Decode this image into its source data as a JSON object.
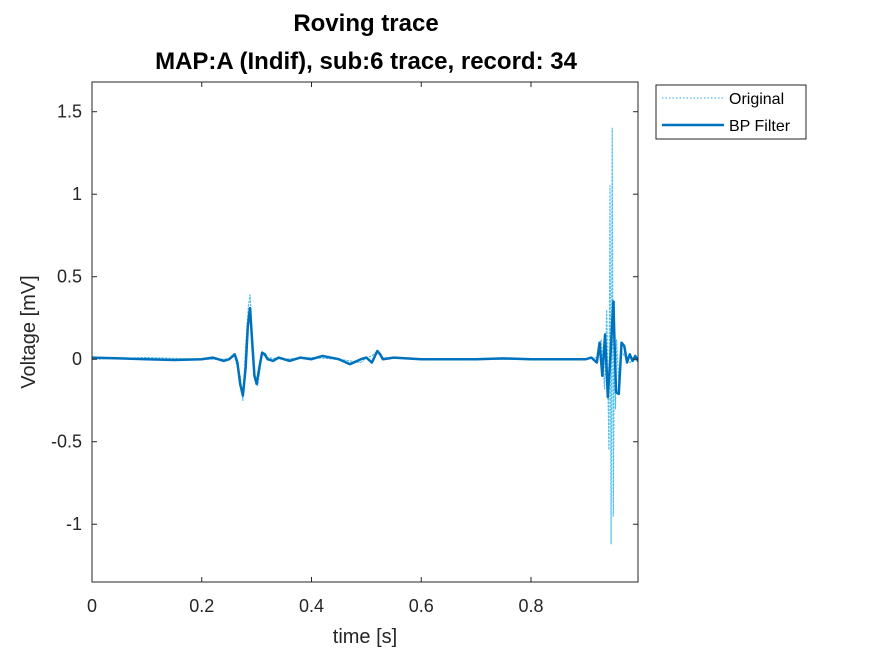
{
  "chart_data": {
    "type": "line",
    "title": [
      "Roving trace",
      "MAP:A (Indif), sub:6 trace, record: 34"
    ],
    "xlabel": "time [s]",
    "ylabel": "Voltage [mV]",
    "xlim": [
      0,
      0.995
    ],
    "ylim": [
      -1.35,
      1.68
    ],
    "xticks": [
      0,
      0.2,
      0.4,
      0.6,
      0.8
    ],
    "xtick_labels": [
      "0",
      "0.2",
      "0.4",
      "0.6",
      "0.8"
    ],
    "yticks": [
      1.5,
      1,
      0.5,
      0,
      -0.5,
      -1
    ],
    "ytick_labels": [
      "1.5",
      "1",
      "0.5",
      "0",
      "-0.5",
      "-1"
    ],
    "grid": false,
    "legend_position": "outside top-right",
    "colors": {
      "original": "#4DBEEE",
      "bp_filter": "#0072BD"
    },
    "series": [
      {
        "name": "Original",
        "style": "dotted",
        "x": [
          0,
          0.1,
          0.2,
          0.25,
          0.26,
          0.265,
          0.27,
          0.275,
          0.28,
          0.285,
          0.288,
          0.292,
          0.297,
          0.302,
          0.31,
          0.32,
          0.35,
          0.4,
          0.45,
          0.49,
          0.5,
          0.51,
          0.52,
          0.53,
          0.6,
          0.7,
          0.8,
          0.9,
          0.92,
          0.928,
          0.934,
          0.938,
          0.942,
          0.944,
          0.946,
          0.948,
          0.95,
          0.952,
          0.954,
          0.956,
          0.96,
          0.965,
          0.97,
          0.98,
          0.995
        ],
        "y": [
          0,
          0.01,
          0,
          0,
          0.02,
          -0.05,
          -0.1,
          -0.25,
          0.08,
          0.32,
          0.39,
          0.15,
          -0.1,
          -0.16,
          0.03,
          0.01,
          0,
          0.01,
          0,
          -0.02,
          0.01,
          0.02,
          0.05,
          0.01,
          0,
          0,
          0,
          0,
          0.01,
          0.12,
          -0.18,
          0.3,
          -0.55,
          1.05,
          -1.12,
          1.4,
          -0.95,
          0.35,
          -0.3,
          0.12,
          -0.15,
          0.05,
          0.02,
          -0.02,
          0
        ]
      },
      {
        "name": "BP Filter",
        "style": "solid",
        "x": [
          0,
          0.05,
          0.1,
          0.15,
          0.2,
          0.22,
          0.24,
          0.25,
          0.26,
          0.265,
          0.27,
          0.275,
          0.28,
          0.284,
          0.288,
          0.292,
          0.296,
          0.3,
          0.305,
          0.31,
          0.315,
          0.32,
          0.33,
          0.34,
          0.36,
          0.38,
          0.4,
          0.42,
          0.45,
          0.47,
          0.49,
          0.5,
          0.51,
          0.52,
          0.525,
          0.53,
          0.55,
          0.6,
          0.65,
          0.7,
          0.75,
          0.8,
          0.85,
          0.9,
          0.91,
          0.92,
          0.925,
          0.93,
          0.935,
          0.94,
          0.945,
          0.95,
          0.955,
          0.96,
          0.965,
          0.97,
          0.975,
          0.98,
          0.985,
          0.99,
          0.995
        ],
        "y": [
          0.01,
          0.005,
          0,
          -0.005,
          0,
          0.01,
          -0.01,
          0,
          0.03,
          -0.02,
          -0.15,
          -0.22,
          -0.05,
          0.2,
          0.31,
          0.1,
          -0.1,
          -0.15,
          -0.05,
          0.04,
          0.03,
          0,
          -0.01,
          0.01,
          -0.01,
          0.01,
          0,
          0.02,
          0,
          -0.03,
          0,
          0.01,
          -0.02,
          0.05,
          0.03,
          0,
          0.01,
          0,
          0,
          0,
          0.005,
          0,
          0,
          0,
          0.01,
          -0.02,
          0.1,
          -0.1,
          0.15,
          -0.23,
          0.03,
          0.35,
          -0.2,
          -0.21,
          0.1,
          0.08,
          -0.02,
          0.03,
          -0.01,
          0.02,
          -0.01
        ]
      }
    ]
  }
}
